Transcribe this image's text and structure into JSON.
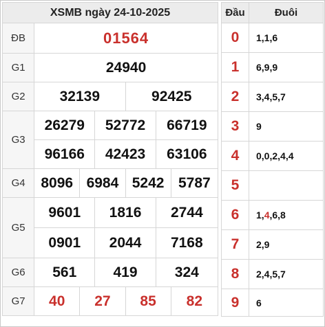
{
  "results": {
    "title": "XSMB ngày 24-10-2025",
    "prizes": [
      {
        "label": "ĐB",
        "numbers": [
          "01564"
        ]
      },
      {
        "label": "G1",
        "numbers": [
          "24940"
        ]
      },
      {
        "label": "G2",
        "numbers": [
          "32139",
          "92425"
        ]
      },
      {
        "label": "G3",
        "numbers": [
          "26279",
          "52772",
          "66719",
          "96166",
          "42423",
          "63106"
        ]
      },
      {
        "label": "G4",
        "numbers": [
          "8096",
          "6984",
          "5242",
          "5787"
        ]
      },
      {
        "label": "G5",
        "numbers": [
          "9601",
          "1816",
          "2744",
          "0901",
          "2044",
          "7168"
        ]
      },
      {
        "label": "G6",
        "numbers": [
          "561",
          "419",
          "324"
        ]
      },
      {
        "label": "G7",
        "numbers": [
          "40",
          "27",
          "85",
          "82"
        ]
      }
    ]
  },
  "loto": {
    "head_label": "Đầu",
    "tail_label": "Đuôi",
    "rows": [
      {
        "head": "0",
        "tails": "1,1,6"
      },
      {
        "head": "1",
        "tails": "6,9,9"
      },
      {
        "head": "2",
        "tails": "3,4,5,7"
      },
      {
        "head": "3",
        "tails": "9"
      },
      {
        "head": "4",
        "tails": "0,0,2,4,4"
      },
      {
        "head": "5",
        "tails": ""
      },
      {
        "head": "6",
        "tails_parts": [
          "1,",
          "4",
          ",6,8"
        ]
      },
      {
        "head": "7",
        "tails": "2,9"
      },
      {
        "head": "8",
        "tails": "2,4,5,7"
      },
      {
        "head": "9",
        "tails": "6"
      }
    ],
    "highlight_color": "#c9302c"
  }
}
